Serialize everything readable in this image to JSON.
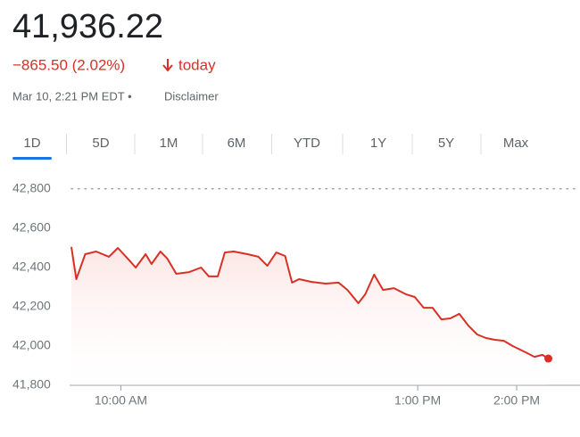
{
  "header": {
    "price": "41,936.22",
    "change": "−865.50 (2.02%)",
    "period": "today",
    "timestamp": "Mar 10, 2:21 PM EDT •",
    "disclaimer": "Disclaimer"
  },
  "tabs": {
    "items": [
      "1D",
      "5D",
      "1M",
      "6M",
      "YTD",
      "1Y",
      "5Y",
      "Max"
    ],
    "selected": "1D"
  },
  "chart_data": {
    "type": "line",
    "color": "#d93025",
    "previous_close": 42801.72,
    "x": [
      9.5,
      9.55,
      9.64,
      9.75,
      9.88,
      9.97,
      10.07,
      10.15,
      10.25,
      10.31,
      10.4,
      10.47,
      10.56,
      10.69,
      10.81,
      10.89,
      10.98,
      11.05,
      11.14,
      11.28,
      11.39,
      11.48,
      11.57,
      11.66,
      11.73,
      11.8,
      11.93,
      12.07,
      12.2,
      12.29,
      12.4,
      12.47,
      12.56,
      12.65,
      12.76,
      12.88,
      12.97,
      13.06,
      13.15,
      13.24,
      13.33,
      13.42,
      13.51,
      13.6,
      13.69,
      13.78,
      13.87,
      13.96,
      14.09,
      14.18,
      14.26,
      14.32
    ],
    "values": [
      42505,
      42341,
      42468,
      42482,
      42455,
      42500,
      42445,
      42400,
      42468,
      42418,
      42482,
      42445,
      42368,
      42377,
      42400,
      42355,
      42355,
      42477,
      42482,
      42468,
      42455,
      42409,
      42477,
      42459,
      42323,
      42341,
      42327,
      42318,
      42323,
      42286,
      42218,
      42264,
      42364,
      42286,
      42295,
      42264,
      42250,
      42195,
      42195,
      42136,
      42141,
      42164,
      42105,
      42059,
      42041,
      42032,
      42027,
      42000,
      41968,
      41945,
      41955,
      41936.22
    ],
    "xlim": [
      9.5,
      14.64
    ],
    "xticks": [
      {
        "value": 10,
        "label": "10:00 AM"
      },
      {
        "value": 13,
        "label": "1:00 PM"
      },
      {
        "value": 14,
        "label": "2:00 PM"
      }
    ],
    "ylim": [
      41800,
      42800
    ],
    "yticks": [
      {
        "value": 41800,
        "label": "41,800"
      },
      {
        "value": 42000,
        "label": "42,000"
      },
      {
        "value": 42200,
        "label": "42,200"
      },
      {
        "value": 42400,
        "label": "42,400"
      },
      {
        "value": 42600,
        "label": "42,600"
      },
      {
        "value": 42800,
        "label": "42,800"
      }
    ]
  }
}
